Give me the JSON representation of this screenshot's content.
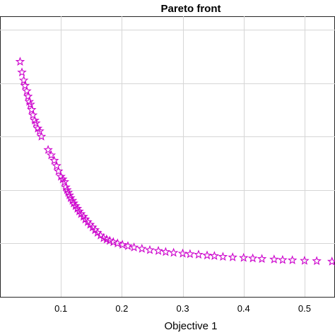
{
  "chart_data": {
    "type": "scatter",
    "title": "Pareto front",
    "xlabel": "Objective 1",
    "ylabel": "",
    "xlim": [
      0.0,
      0.55
    ],
    "ylim": [
      0.0,
      1.05
    ],
    "grid": true,
    "x_ticks": [
      0.1,
      0.2,
      0.3,
      0.4,
      0.5
    ],
    "x_tick_labels": [
      "0.1",
      "0.2",
      "0.3",
      "0.4",
      "0.5"
    ],
    "y_ticks": [
      0.0,
      0.2,
      0.4,
      0.6,
      0.8,
      1.0
    ],
    "marker": "pentagram",
    "marker_color": "#cc00cc",
    "series": [
      {
        "x": [
          0.033,
          0.036,
          0.039,
          0.041,
          0.044,
          0.046,
          0.048,
          0.05,
          0.052,
          0.054,
          0.057,
          0.059,
          0.062,
          0.065,
          0.068,
          0.079,
          0.084,
          0.089,
          0.093,
          0.096,
          0.1,
          0.103,
          0.106,
          0.108,
          0.11,
          0.112,
          0.114,
          0.116,
          0.119,
          0.121,
          0.124,
          0.127,
          0.13,
          0.133,
          0.137,
          0.14,
          0.144,
          0.148,
          0.152,
          0.156,
          0.16,
          0.165,
          0.17,
          0.175,
          0.18,
          0.186,
          0.193,
          0.201,
          0.21,
          0.22,
          0.233,
          0.246,
          0.26,
          0.272,
          0.285,
          0.3,
          0.312,
          0.326,
          0.34,
          0.352,
          0.366,
          0.382,
          0.4,
          0.415,
          0.43,
          0.45,
          0.464,
          0.48,
          0.5,
          0.52,
          0.545
        ],
        "y": [
          0.88,
          0.84,
          0.81,
          0.79,
          0.77,
          0.75,
          0.73,
          0.72,
          0.7,
          0.68,
          0.66,
          0.65,
          0.63,
          0.62,
          0.6,
          0.55,
          0.53,
          0.51,
          0.49,
          0.47,
          0.45,
          0.44,
          0.43,
          0.41,
          0.4,
          0.39,
          0.38,
          0.37,
          0.36,
          0.35,
          0.34,
          0.33,
          0.32,
          0.31,
          0.3,
          0.29,
          0.28,
          0.27,
          0.26,
          0.25,
          0.24,
          0.23,
          0.22,
          0.215,
          0.21,
          0.205,
          0.2,
          0.195,
          0.19,
          0.185,
          0.18,
          0.175,
          0.172,
          0.168,
          0.165,
          0.162,
          0.16,
          0.158,
          0.155,
          0.153,
          0.15,
          0.148,
          0.146,
          0.144,
          0.142,
          0.14,
          0.138,
          0.137,
          0.135,
          0.134,
          0.132
        ]
      }
    ]
  }
}
